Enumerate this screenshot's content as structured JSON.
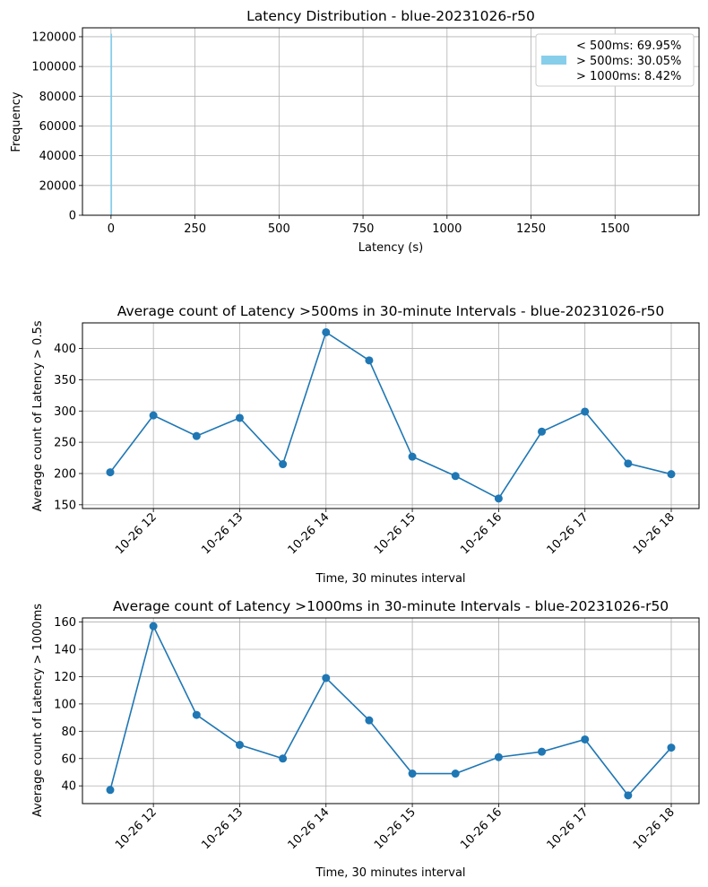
{
  "chart_data": [
    {
      "type": "bar",
      "title": "Latency Distribution - blue-20231026-r50",
      "xlabel": "Latency (s)",
      "ylabel": "Frequency",
      "xlim": [
        -85,
        1750
      ],
      "ylim": [
        0,
        126000
      ],
      "x_ticks": [
        0,
        250,
        500,
        750,
        1000,
        1250,
        1500
      ],
      "y_ticks": [
        0,
        20000,
        40000,
        60000,
        80000,
        100000,
        120000
      ],
      "bins": [
        {
          "x": 0,
          "value": 122000
        }
      ],
      "legend": {
        "placement": "upper right",
        "entries": [
          "< 500ms: 69.95%",
          "> 500ms: 30.05%",
          "> 1000ms: 8.42%"
        ]
      },
      "color": "#87ceeb",
      "grid": true
    },
    {
      "type": "line",
      "title": "Average count of Latency >500ms in 30-minute Intervals - blue-20231026-r50",
      "xlabel": "Time, 30 minutes interval",
      "ylabel": "Average count of Latency > 0.5s",
      "x": [
        "10-26 11:30",
        "10-26 12:00",
        "10-26 12:30",
        "10-26 13:00",
        "10-26 13:30",
        "10-26 14:00",
        "10-26 14:30",
        "10-26 15:00",
        "10-26 15:30",
        "10-26 16:00",
        "10-26 16:30",
        "10-26 17:00",
        "10-26 17:30",
        "10-26 18:00"
      ],
      "values": [
        202,
        293,
        260,
        289,
        215,
        426,
        381,
        227,
        196,
        160,
        267,
        299,
        216,
        199
      ],
      "x_tick_labels": [
        "10-26 12",
        "10-26 13",
        "10-26 14",
        "10-26 15",
        "10-26 16",
        "10-26 17",
        "10-26 18"
      ],
      "ylim": [
        144,
        441
      ],
      "y_ticks": [
        150,
        200,
        250,
        300,
        350,
        400
      ],
      "color": "#1f77b4",
      "grid": true
    },
    {
      "type": "line",
      "title": "Average count of Latency >1000ms in 30-minute Intervals - blue-20231026-r50",
      "xlabel": "Time, 30 minutes interval",
      "ylabel": "Average count of Latency > 1000ms",
      "x": [
        "10-26 11:30",
        "10-26 12:00",
        "10-26 12:30",
        "10-26 13:00",
        "10-26 13:30",
        "10-26 14:00",
        "10-26 14:30",
        "10-26 15:00",
        "10-26 15:30",
        "10-26 16:00",
        "10-26 16:30",
        "10-26 17:00",
        "10-26 17:30",
        "10-26 18:00"
      ],
      "values": [
        37,
        157,
        92,
        70,
        60,
        119,
        88,
        49,
        49,
        61,
        65,
        74,
        33,
        68
      ],
      "x_tick_labels": [
        "10-26 12",
        "10-26 13",
        "10-26 14",
        "10-26 15",
        "10-26 16",
        "10-26 17",
        "10-26 18"
      ],
      "ylim": [
        27,
        163
      ],
      "y_ticks": [
        40,
        60,
        80,
        100,
        120,
        140,
        160
      ],
      "color": "#1f77b4",
      "grid": true
    }
  ]
}
